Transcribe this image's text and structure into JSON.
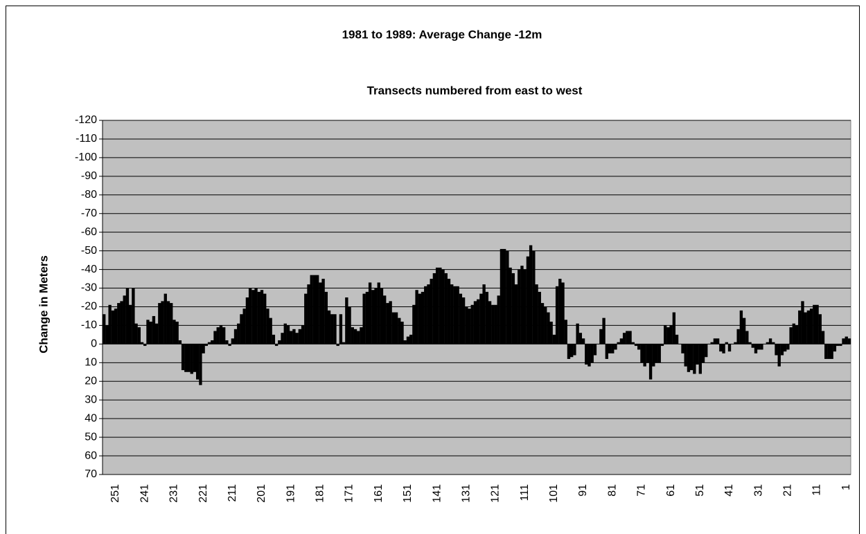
{
  "chart_data": {
    "type": "bar",
    "title": "1981 to 1989: Average Change -12m",
    "subtitle": "Transects numbered from east to west",
    "y_label": "Change in Meters",
    "color": "#000000",
    "background": "#c0c0c0",
    "grid": true,
    "y_inverted": true,
    "ylim": [
      -120,
      70
    ],
    "yticks": [
      -120,
      -110,
      -100,
      -90,
      -80,
      -70,
      -60,
      -50,
      -40,
      -30,
      -20,
      -10,
      0,
      10,
      20,
      30,
      40,
      50,
      60,
      70
    ],
    "categories": [
      null,
      null,
      null,
      null,
      "251",
      null,
      null,
      null,
      null,
      null,
      null,
      null,
      null,
      null,
      "241",
      null,
      null,
      null,
      null,
      null,
      null,
      null,
      null,
      null,
      "231",
      null,
      null,
      null,
      null,
      null,
      null,
      null,
      null,
      null,
      "221",
      null,
      null,
      null,
      null,
      null,
      null,
      null,
      null,
      null,
      "211",
      null,
      null,
      null,
      null,
      null,
      null,
      null,
      null,
      null,
      "201",
      null,
      null,
      null,
      null,
      null,
      null,
      null,
      null,
      null,
      "191",
      null,
      null,
      null,
      null,
      null,
      null,
      null,
      null,
      null,
      "181",
      null,
      null,
      null,
      null,
      null,
      null,
      null,
      null,
      null,
      "171",
      null,
      null,
      null,
      null,
      null,
      null,
      null,
      null,
      null,
      "161",
      null,
      null,
      null,
      null,
      null,
      null,
      null,
      null,
      null,
      "151",
      null,
      null,
      null,
      null,
      null,
      null,
      null,
      null,
      null,
      "141",
      null,
      null,
      null,
      null,
      null,
      null,
      null,
      null,
      null,
      "131",
      null,
      null,
      null,
      null,
      null,
      null,
      null,
      null,
      null,
      "121",
      null,
      null,
      null,
      null,
      null,
      null,
      null,
      null,
      null,
      "111",
      null,
      null,
      null,
      null,
      null,
      null,
      null,
      null,
      null,
      "101",
      null,
      null,
      null,
      null,
      null,
      null,
      null,
      null,
      null,
      "91",
      null,
      null,
      null,
      null,
      null,
      null,
      null,
      null,
      null,
      "81",
      null,
      null,
      null,
      null,
      null,
      null,
      null,
      null,
      null,
      "71",
      null,
      null,
      null,
      null,
      null,
      null,
      null,
      null,
      null,
      "61",
      null,
      null,
      null,
      null,
      null,
      null,
      null,
      null,
      null,
      "51",
      null,
      null,
      null,
      null,
      null,
      null,
      null,
      null,
      null,
      "41",
      null,
      null,
      null,
      null,
      null,
      null,
      null,
      null,
      null,
      "31",
      null,
      null,
      null,
      null,
      null,
      null,
      null,
      null,
      null,
      "21",
      null,
      null,
      null,
      null,
      null,
      null,
      null,
      null,
      null,
      "11",
      null,
      null,
      null,
      null,
      null,
      null,
      null,
      null,
      null,
      "1",
      null
    ],
    "values": [
      -16,
      -10,
      -21,
      -18,
      -19,
      -22,
      -23,
      -26,
      -30,
      -21,
      -30,
      -11,
      -9,
      -1,
      1,
      -13,
      -12,
      -15,
      -11,
      -22,
      -23,
      -27,
      -23,
      -22,
      -13,
      -12,
      -2,
      14,
      15,
      15,
      16,
      15,
      19,
      22,
      5,
      1,
      -1,
      -2,
      -7,
      -9,
      -10,
      -9,
      -2,
      1,
      -3,
      -8,
      -11,
      -16,
      -19,
      -25,
      -30,
      -29,
      -30,
      -28,
      -29,
      -27,
      -19,
      -14,
      -5,
      1,
      -2,
      -6,
      -11,
      -10,
      -7,
      -8,
      -6,
      -8,
      -10,
      -27,
      -32,
      -37,
      -37,
      -37,
      -33,
      -35,
      -28,
      -18,
      -16,
      -16,
      1,
      -16,
      -1,
      -25,
      -20,
      -9,
      -8,
      -7,
      -9,
      -27,
      -28,
      -33,
      -29,
      -30,
      -33,
      -30,
      -26,
      -22,
      -23,
      -17,
      -17,
      -14,
      -12,
      -2,
      -4,
      -5,
      -21,
      -29,
      -27,
      -28,
      -31,
      -32,
      -35,
      -38,
      -41,
      -41,
      -40,
      -38,
      -35,
      -32,
      -31,
      -31,
      -27,
      -25,
      -20,
      -19,
      -21,
      -23,
      -24,
      -27,
      -32,
      -28,
      -23,
      -21,
      -21,
      -26,
      -51,
      -51,
      -50,
      -41,
      -38,
      -32,
      -40,
      -42,
      -40,
      -47,
      -53,
      -50,
      -32,
      -28,
      -22,
      -20,
      -17,
      -12,
      -5,
      -31,
      -35,
      -33,
      -13,
      8,
      7,
      6,
      -11,
      -6,
      -3,
      11,
      12,
      10,
      6,
      0,
      -8,
      -14,
      8,
      5,
      5,
      3,
      -1,
      -3,
      -6,
      -7,
      -7,
      -1,
      1,
      3,
      10,
      12,
      10,
      19,
      12,
      10,
      10,
      1,
      -10,
      -9,
      -10,
      -17,
      -5,
      0,
      5,
      12,
      15,
      14,
      16,
      11,
      16,
      10,
      7,
      0,
      -1,
      -3,
      -3,
      4,
      5,
      -1,
      4,
      0,
      -1,
      -8,
      -18,
      -14,
      -7,
      -1,
      2,
      5,
      3,
      3,
      0,
      -1,
      -3,
      -1,
      6,
      12,
      6,
      4,
      3,
      -9,
      -11,
      -10,
      -18,
      -23,
      -17,
      -18,
      -19,
      -21,
      -21,
      -16,
      -7,
      8,
      8,
      8,
      4,
      1,
      1,
      -3,
      -4,
      -3
    ]
  }
}
